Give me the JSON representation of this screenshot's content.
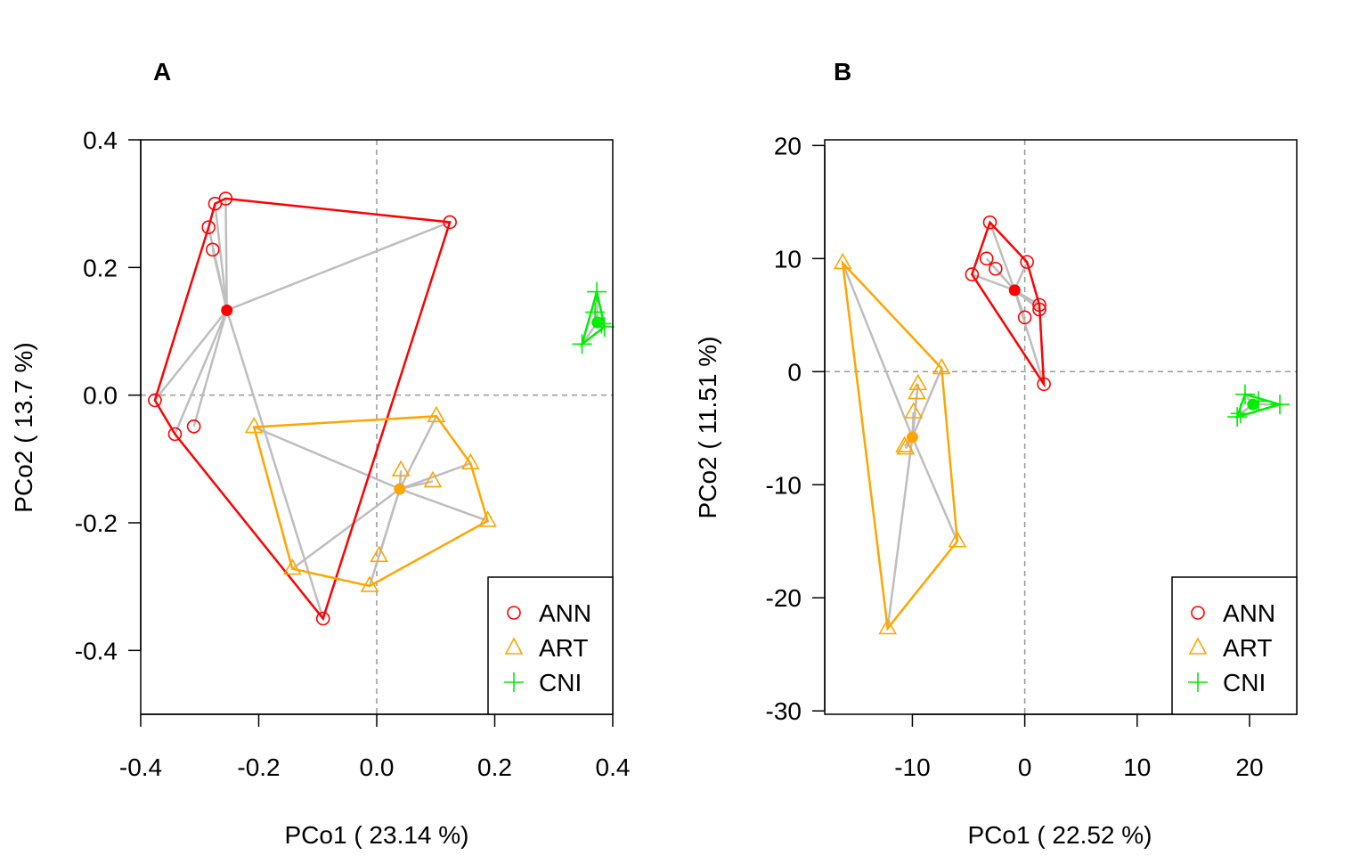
{
  "chart_data": [
    {
      "type": "scatter",
      "panel_label": "A",
      "xlabel": "PCo1 ( 23.14 %)",
      "ylabel": "PCo2 ( 13.7 %)",
      "xlim": [
        -0.4,
        0.4
      ],
      "ylim": [
        -0.5,
        0.4
      ],
      "xticks": [
        -0.4,
        -0.2,
        0.0,
        0.2,
        0.4
      ],
      "xtick_labels": [
        "-0.4",
        "-0.2",
        "0.0",
        "0.2",
        "0.4"
      ],
      "yticks": [
        -0.4,
        -0.2,
        0.0,
        0.2,
        0.4
      ],
      "ytick_labels": [
        "-0.4",
        "-0.2",
        "0.0",
        "0.2",
        "0.4"
      ],
      "reference_lines": {
        "x": 0,
        "y": 0
      },
      "legend_position": "bottom-right",
      "series": [
        {
          "name": "ANN",
          "color": "#ff0000",
          "marker": "circle",
          "centroid": [
            -0.254,
            0.133
          ],
          "points": [
            [
              -0.256,
              0.308
            ],
            [
              -0.274,
              0.3
            ],
            [
              -0.285,
              0.263
            ],
            [
              -0.278,
              0.228
            ],
            [
              0.124,
              0.271
            ],
            [
              -0.376,
              -0.008
            ],
            [
              -0.342,
              -0.061
            ],
            [
              -0.31,
              -0.049
            ],
            [
              -0.091,
              -0.35
            ]
          ],
          "hull": [
            [
              -0.256,
              0.308
            ],
            [
              0.124,
              0.271
            ],
            [
              -0.091,
              -0.35
            ],
            [
              -0.342,
              -0.061
            ],
            [
              -0.376,
              -0.008
            ],
            [
              -0.285,
              0.263
            ],
            [
              -0.274,
              0.3
            ]
          ]
        },
        {
          "name": "ART",
          "color": "#ffa500",
          "marker": "triangle",
          "centroid": [
            0.039,
            -0.147
          ],
          "points": [
            [
              -0.208,
              -0.05
            ],
            [
              0.101,
              -0.033
            ],
            [
              0.159,
              -0.107
            ],
            [
              0.188,
              -0.197
            ],
            [
              0.041,
              -0.118
            ],
            [
              0.095,
              -0.135
            ],
            [
              0.004,
              -0.252
            ],
            [
              -0.143,
              -0.272
            ],
            [
              -0.012,
              -0.299
            ]
          ],
          "hull": [
            [
              -0.208,
              -0.05
            ],
            [
              0.101,
              -0.033
            ],
            [
              0.159,
              -0.107
            ],
            [
              0.188,
              -0.197
            ],
            [
              -0.012,
              -0.299
            ],
            [
              -0.143,
              -0.272
            ]
          ]
        },
        {
          "name": "CNI",
          "color": "#00ee00",
          "marker": "plus",
          "centroid": [
            0.374,
            0.114
          ],
          "points": [
            [
              0.373,
              0.162
            ],
            [
              0.37,
              0.13
            ],
            [
              0.386,
              0.107
            ],
            [
              0.381,
              0.112
            ],
            [
              0.348,
              0.08
            ]
          ],
          "hull": [
            [
              0.373,
              0.162
            ],
            [
              0.386,
              0.107
            ],
            [
              0.348,
              0.08
            ]
          ]
        }
      ]
    },
    {
      "type": "scatter",
      "panel_label": "B",
      "xlabel": "PCo1 ( 22.52 %)",
      "ylabel": "PCo2 ( 11.51 %)",
      "xlim": [
        -17.8,
        24.2
      ],
      "ylim": [
        -30.3,
        20.5
      ],
      "xticks": [
        -10,
        0,
        10,
        20
      ],
      "xtick_labels": [
        "-10",
        "0",
        "10",
        "20"
      ],
      "yticks": [
        -30,
        -20,
        -10,
        0,
        10,
        20
      ],
      "ytick_labels": [
        "-30",
        "-20",
        "-10",
        "0",
        "10",
        "20"
      ],
      "reference_lines": {
        "x": 0,
        "y": 0
      },
      "legend_position": "bottom-right",
      "series": [
        {
          "name": "ANN",
          "color": "#ff0000",
          "marker": "circle",
          "centroid": [
            -0.9,
            7.2
          ],
          "points": [
            [
              -3.1,
              13.2
            ],
            [
              -3.4,
              10.0
            ],
            [
              -2.6,
              9.1
            ],
            [
              -4.7,
              8.6
            ],
            [
              0.2,
              9.7
            ],
            [
              0.0,
              4.8
            ],
            [
              1.3,
              5.9
            ],
            [
              1.3,
              5.5
            ],
            [
              1.7,
              -1.1
            ]
          ],
          "hull": [
            [
              -3.1,
              13.2
            ],
            [
              0.2,
              9.7
            ],
            [
              1.3,
              5.9
            ],
            [
              1.7,
              -1.1
            ],
            [
              -4.7,
              8.6
            ]
          ]
        },
        {
          "name": "ART",
          "color": "#ffa500",
          "marker": "triangle",
          "centroid": [
            -10.0,
            -5.8
          ],
          "points": [
            [
              -16.2,
              9.6
            ],
            [
              -7.4,
              0.3
            ],
            [
              -9.5,
              -1.1
            ],
            [
              -9.6,
              -1.9
            ],
            [
              -9.9,
              -3.6
            ],
            [
              -10.7,
              -6.6
            ],
            [
              -10.6,
              -6.8
            ],
            [
              -6.0,
              -15.0
            ],
            [
              -12.2,
              -22.7
            ]
          ],
          "hull": [
            [
              -16.2,
              9.6
            ],
            [
              -7.4,
              0.3
            ],
            [
              -6.0,
              -15.0
            ],
            [
              -12.2,
              -22.7
            ]
          ]
        },
        {
          "name": "CNI",
          "color": "#00ee00",
          "marker": "plus",
          "centroid": [
            20.3,
            -2.9
          ],
          "points": [
            [
              19.6,
              -2.0
            ],
            [
              20.8,
              -2.6
            ],
            [
              22.7,
              -2.9
            ],
            [
              19.2,
              -3.7
            ],
            [
              18.9,
              -4.0
            ]
          ],
          "hull": [
            [
              19.6,
              -2.0
            ],
            [
              22.7,
              -2.9
            ],
            [
              18.9,
              -4.0
            ]
          ]
        }
      ]
    }
  ]
}
